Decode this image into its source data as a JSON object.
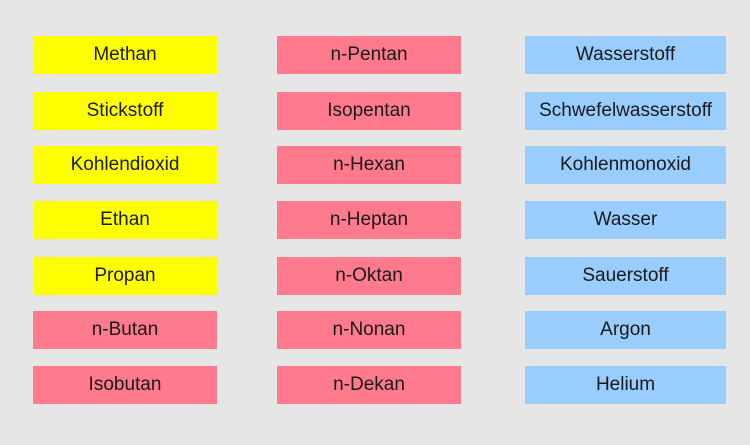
{
  "colors": {
    "background": "#e6e6e6",
    "yellow": "#ffff00",
    "pink": "#ff7a8c",
    "blue": "#99ccff"
  },
  "columns": [
    {
      "items": [
        {
          "label": "Methan",
          "color": "yellow"
        },
        {
          "label": "Stickstoff",
          "color": "yellow"
        },
        {
          "label": "Kohlendioxid",
          "color": "yellow"
        },
        {
          "label": "Ethan",
          "color": "yellow"
        },
        {
          "label": "Propan",
          "color": "yellow"
        },
        {
          "label": "n-Butan",
          "color": "pink"
        },
        {
          "label": "Isobutan",
          "color": "pink"
        }
      ]
    },
    {
      "items": [
        {
          "label": "n-Pentan",
          "color": "pink"
        },
        {
          "label": "Isopentan",
          "color": "pink"
        },
        {
          "label": "n-Hexan",
          "color": "pink"
        },
        {
          "label": "n-Heptan",
          "color": "pink"
        },
        {
          "label": "n-Oktan",
          "color": "pink"
        },
        {
          "label": "n-Nonan",
          "color": "pink"
        },
        {
          "label": "n-Dekan",
          "color": "pink"
        }
      ]
    },
    {
      "items": [
        {
          "label": "Wasserstoff",
          "color": "blue"
        },
        {
          "label": "Schwefelwasserstoff",
          "color": "blue"
        },
        {
          "label": "Kohlenmonoxid",
          "color": "blue"
        },
        {
          "label": "Wasser",
          "color": "blue"
        },
        {
          "label": "Sauerstoff",
          "color": "blue"
        },
        {
          "label": "Argon",
          "color": "blue"
        },
        {
          "label": "Helium",
          "color": "blue"
        }
      ]
    }
  ]
}
